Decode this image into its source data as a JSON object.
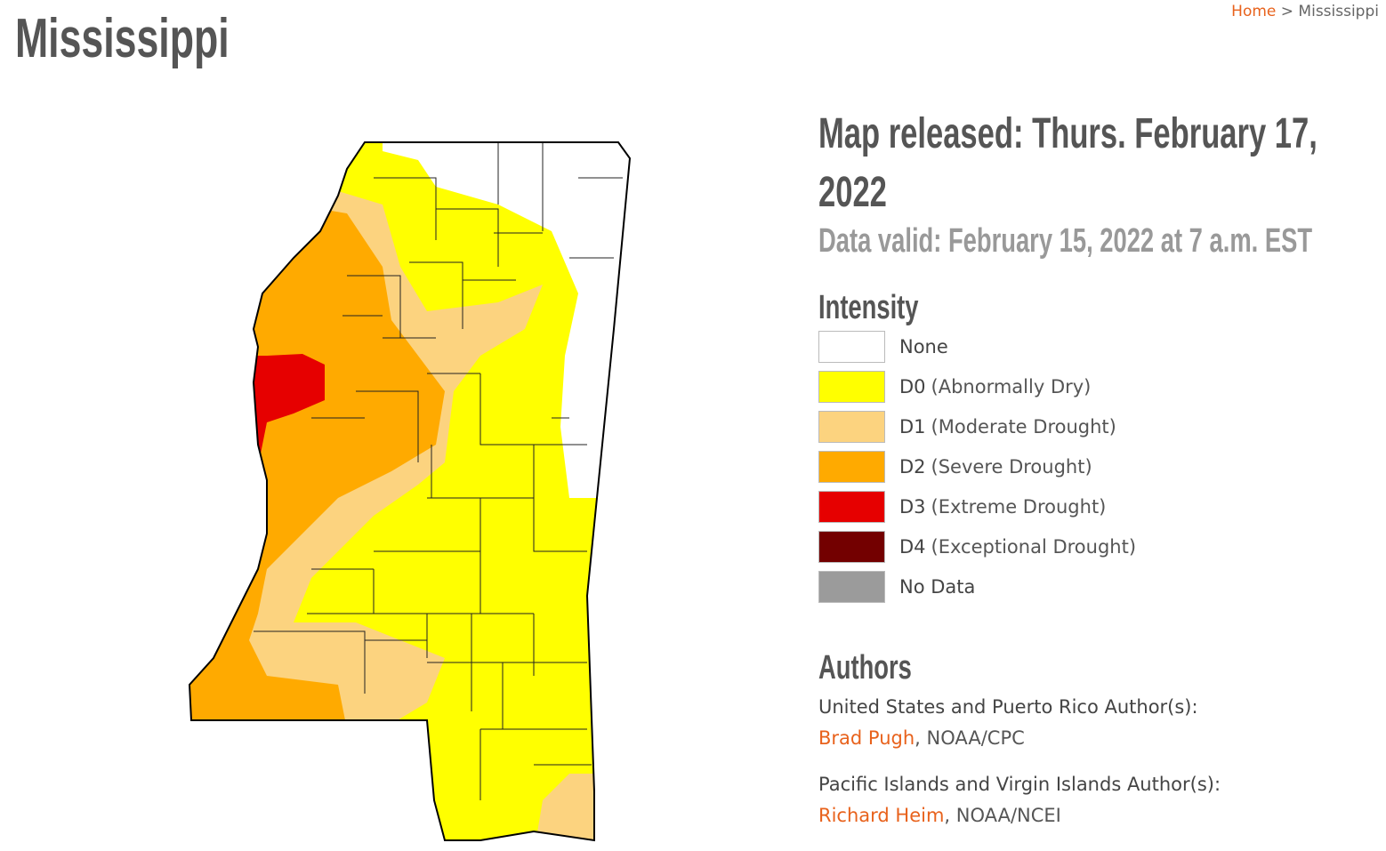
{
  "breadcrumb": {
    "home": "Home",
    "separator": ">",
    "current": "Mississippi"
  },
  "title": "Mississippi",
  "map_released": "Map released: Thurs. February 17, 2022",
  "data_valid": "Data valid: February 15, 2022 at 7 a.m. EST",
  "legend": {
    "title": "Intensity",
    "items": [
      {
        "code": "None",
        "color": "#ffffff"
      },
      {
        "code": "D0",
        "label": "(Abnormally Dry)",
        "color": "#ffff00"
      },
      {
        "code": "D1",
        "label": "(Moderate Drought)",
        "color": "#fcd37f"
      },
      {
        "code": "D2",
        "label": "(Severe Drought)",
        "color": "#ffaa00"
      },
      {
        "code": "D3",
        "label": "(Extreme Drought)",
        "color": "#e60000"
      },
      {
        "code": "D4",
        "label": "(Exceptional Drought)",
        "color": "#730000"
      },
      {
        "code": "No Data",
        "color": "#9b9b9b"
      }
    ]
  },
  "authors": {
    "title": "Authors",
    "groups": [
      {
        "heading": "United States and Puerto Rico Author(s):",
        "name": "Brad Pugh",
        "affiliation": ", NOAA/CPC"
      },
      {
        "heading": "Pacific Islands and Virgin Islands Author(s):",
        "name": "Richard Heim",
        "affiliation": ", NOAA/NCEI"
      }
    ]
  }
}
